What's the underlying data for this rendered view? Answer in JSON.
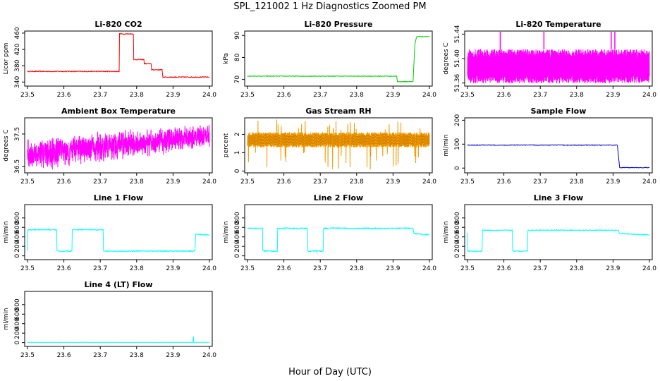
{
  "title": "SPL_121002  1 Hz Diagnostics Zoomed PM",
  "xlabel": "Hour of Day (UTC)",
  "chart_data": [
    {
      "type": "line",
      "title": "Li-820 CO2",
      "ylabel": "Licor ppm",
      "color": "#ff0000",
      "xlim": [
        23.5,
        24.0
      ],
      "ylim": [
        330,
        465
      ],
      "xticks": [
        "23.5",
        "23.6",
        "23.7",
        "23.8",
        "23.9",
        "24.0"
      ],
      "xtick_values": [
        23.5,
        23.6,
        23.7,
        23.8,
        23.9,
        24.0
      ],
      "yticks": [
        "340",
        "380",
        "420",
        "460"
      ],
      "ytick_values": [
        340,
        380,
        420,
        460
      ],
      "series": [
        {
          "x": [
            23.5,
            23.752,
            23.753,
            23.791,
            23.792,
            23.82,
            23.821,
            23.84,
            23.841,
            23.87,
            23.872,
            23.95,
            23.96,
            23.961,
            24.0
          ],
          "y": [
            366,
            366,
            458,
            458,
            395,
            395,
            385,
            385,
            370,
            370,
            352,
            352,
            352,
            352,
            352
          ]
        }
      ],
      "noise": 1.2
    },
    {
      "type": "line",
      "title": "Li-820 Pressure",
      "ylabel": "kPa",
      "color": "#00cc00",
      "xlim": [
        23.5,
        24.0
      ],
      "ylim": [
        67,
        92
      ],
      "xticks": [
        "23.5",
        "23.6",
        "23.7",
        "23.8",
        "23.9",
        "24.0"
      ],
      "xtick_values": [
        23.5,
        23.6,
        23.7,
        23.8,
        23.9,
        24.0
      ],
      "yticks": [
        "70",
        "80",
        "90"
      ],
      "ytick_values": [
        70,
        80,
        90
      ],
      "series": [
        {
          "x": [
            23.5,
            23.91,
            23.912,
            23.955,
            23.96,
            23.965,
            24.0
          ],
          "y": [
            71.5,
            71.5,
            69,
            69,
            86,
            89.5,
            89.5
          ]
        }
      ],
      "noise": 0.15
    },
    {
      "type": "line",
      "title": "Li-820 Temperature",
      "ylabel": "degrees C",
      "color": "#ff00ff",
      "xlim": [
        23.5,
        24.0
      ],
      "ylim": [
        51.355,
        51.445
      ],
      "xticks": [
        "23.5",
        "23.6",
        "23.7",
        "23.8",
        "23.9",
        "24.0"
      ],
      "xtick_values": [
        23.5,
        23.6,
        23.7,
        23.8,
        23.9,
        24.0
      ],
      "yticks": [
        "51.36",
        "51.40",
        "51.44"
      ],
      "ytick_values": [
        51.36,
        51.4,
        51.44
      ],
      "band": [
        51.36,
        51.415
      ],
      "spikes_up": [
        23.59,
        23.71,
        23.895,
        23.905
      ],
      "spikes_down_top": 51.385
    },
    {
      "type": "line",
      "title": "Ambient Box Temperature",
      "ylabel": "degrees C",
      "color": "#ff00ff",
      "xlim": [
        23.5,
        24.0
      ],
      "ylim": [
        36.3,
        38.0
      ],
      "xticks": [
        "23.5",
        "23.6",
        "23.7",
        "23.8",
        "23.9",
        "24.0"
      ],
      "xtick_values": [
        23.5,
        23.6,
        23.7,
        23.8,
        23.9,
        24.0
      ],
      "yticks": [
        "36.5",
        "37.5"
      ],
      "ytick_values": [
        36.5,
        37.5
      ],
      "trend_center": [
        36.85,
        37.45
      ],
      "trend_amp": [
        0.55,
        0.4
      ]
    },
    {
      "type": "line",
      "title": "Gas Stream RH",
      "ylabel": "percent",
      "color": "#ffa500",
      "xlim": [
        23.5,
        24.0
      ],
      "ylim": [
        -0.1,
        2.9
      ],
      "xticks": [
        "23.5",
        "23.6",
        "23.7",
        "23.8",
        "23.9",
        "24.0"
      ],
      "xtick_values": [
        23.5,
        23.6,
        23.7,
        23.8,
        23.9,
        24.0
      ],
      "yticks": [
        "0",
        "1",
        "2"
      ],
      "ytick_values": [
        0,
        1,
        2
      ],
      "band": [
        1.3,
        2.1
      ]
    },
    {
      "type": "line",
      "title": "Sample Flow",
      "ylabel": "ml/min",
      "color": "#0000cc",
      "xlim": [
        23.5,
        24.0
      ],
      "ylim": [
        -20,
        210
      ],
      "xticks": [
        "23.5",
        "23.6",
        "23.7",
        "23.8",
        "23.9",
        "24.0"
      ],
      "xtick_values": [
        23.5,
        23.6,
        23.7,
        23.8,
        23.9,
        24.0
      ],
      "yticks": [
        "0",
        "100",
        "200"
      ],
      "ytick_values": [
        0,
        100,
        200
      ],
      "series": [
        {
          "x": [
            23.5,
            23.912,
            23.918,
            24.0
          ],
          "y": [
            96,
            96,
            2,
            2
          ]
        }
      ],
      "noise": 1.5
    },
    {
      "type": "line",
      "title": "Line 1 Flow",
      "ylabel": "ml/min",
      "color": "#00ffff",
      "xlim": [
        23.5,
        24.0
      ],
      "ylim": [
        -80,
        1080
      ],
      "xticks": [
        "23.5",
        "23.6",
        "23.7",
        "23.8",
        "23.9",
        "24.0"
      ],
      "xtick_values": [
        23.5,
        23.6,
        23.7,
        23.8,
        23.9,
        24.0
      ],
      "yticks": [
        "0",
        "200",
        "400",
        "600",
        "800"
      ],
      "ytick_values": [
        0,
        200,
        400,
        600,
        800
      ],
      "series": [
        {
          "x": [
            23.5,
            23.501,
            23.502,
            23.58,
            23.581,
            23.622,
            23.623,
            23.708,
            23.709,
            23.96,
            23.962,
            24.0
          ],
          "y": [
            100,
            520,
            550,
            550,
            100,
            100,
            550,
            550,
            100,
            100,
            460,
            440
          ]
        }
      ],
      "noise": 12
    },
    {
      "type": "line",
      "title": "Line 2 Flow",
      "ylabel": "ml/min",
      "color": "#00ffff",
      "xlim": [
        23.5,
        24.0
      ],
      "ylim": [
        -80,
        1080
      ],
      "xticks": [
        "23.5",
        "23.6",
        "23.7",
        "23.8",
        "23.9",
        "24.0"
      ],
      "xtick_values": [
        23.5,
        23.6,
        23.7,
        23.8,
        23.9,
        24.0
      ],
      "yticks": [
        "0",
        "200",
        "400",
        "600",
        "800"
      ],
      "ytick_values": [
        0,
        200,
        400,
        600,
        800
      ],
      "series": [
        {
          "x": [
            23.5,
            23.541,
            23.542,
            23.582,
            23.583,
            23.665,
            23.666,
            23.708,
            23.709,
            23.955,
            23.957,
            24.0
          ],
          "y": [
            580,
            580,
            100,
            100,
            580,
            580,
            100,
            100,
            580,
            580,
            470,
            440
          ]
        }
      ],
      "noise": 14
    },
    {
      "type": "line",
      "title": "Line 3 Flow",
      "ylabel": "ml/min",
      "color": "#00ffff",
      "xlim": [
        23.5,
        24.0
      ],
      "ylim": [
        -80,
        1080
      ],
      "xticks": [
        "23.5",
        "23.6",
        "23.7",
        "23.8",
        "23.9",
        "24.0"
      ],
      "xtick_values": [
        23.5,
        23.6,
        23.7,
        23.8,
        23.9,
        24.0
      ],
      "yticks": [
        "0",
        "200",
        "400",
        "600",
        "800"
      ],
      "ytick_values": [
        0,
        200,
        400,
        600,
        800
      ],
      "series": [
        {
          "x": [
            23.5,
            23.501,
            23.502,
            23.54,
            23.541,
            23.623,
            23.624,
            23.665,
            23.666,
            23.915,
            23.917,
            24.0
          ],
          "y": [
            480,
            100,
            100,
            100,
            540,
            540,
            100,
            100,
            540,
            540,
            470,
            440
          ]
        }
      ],
      "noise": 10
    },
    {
      "type": "line",
      "title": "Line 4 (LT) Flow",
      "ylabel": "ml/min",
      "color": "#00ffff",
      "xlim": [
        23.5,
        24.0
      ],
      "ylim": [
        -80,
        1080
      ],
      "xticks": [
        "23.5",
        "23.6",
        "23.7",
        "23.8",
        "23.9",
        "24.0"
      ],
      "xtick_values": [
        23.5,
        23.6,
        23.7,
        23.8,
        23.9,
        24.0
      ],
      "yticks": [
        "0",
        "200",
        "400",
        "600",
        "800"
      ],
      "ytick_values": [
        0,
        200,
        400,
        600,
        800
      ],
      "series": [
        {
          "x": [
            23.5,
            23.955,
            23.956,
            23.957,
            23.958,
            24.0
          ],
          "y": [
            5,
            5,
            130,
            5,
            5,
            5
          ]
        }
      ],
      "noise": 2
    }
  ]
}
